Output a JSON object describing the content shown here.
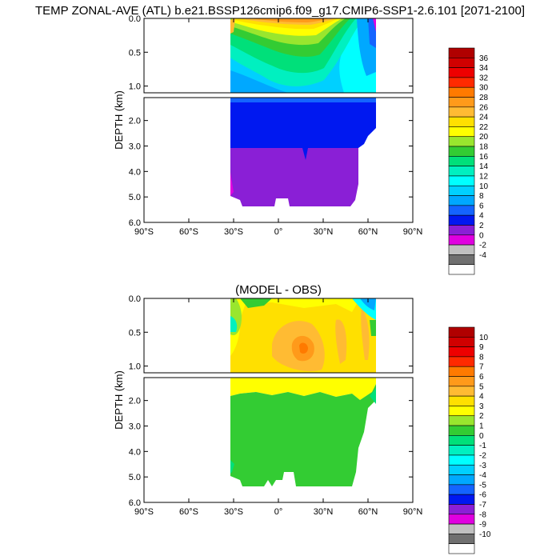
{
  "figure": {
    "title": "TEMP ZONAL-AVE (ATL) b.e21.BSSP126cmip6.f09_g17.CMIP6-SSP1-2.6.101 [2071-2100]"
  },
  "chart_data": [
    {
      "type": "heatmap",
      "panel": "model",
      "title": "",
      "xlabel": "",
      "ylabel": "DEPTH (km)",
      "x_ticks": [
        "90°S",
        "60°S",
        "30°S",
        "0°",
        "30°N",
        "60°N",
        "90°N"
      ],
      "x_tick_values": [
        -90,
        -60,
        -30,
        0,
        30,
        60,
        90
      ],
      "xlim": [
        -90,
        90
      ],
      "upper_segment": {
        "ylim": [
          0.0,
          1.1
        ],
        "ticks": [
          "0.0",
          "0.5",
          "1.0"
        ],
        "tick_values": [
          0.0,
          0.5,
          1.0
        ]
      },
      "lower_segment": {
        "ylim": [
          1.1,
          6.0
        ],
        "ticks": [
          "2.0",
          "3.0",
          "4.0",
          "5.0",
          "6.0"
        ],
        "tick_values": [
          2.0,
          3.0,
          4.0,
          5.0,
          6.0
        ]
      },
      "colorbar": {
        "levels": [
          "36",
          "34",
          "32",
          "30",
          "28",
          "26",
          "24",
          "22",
          "20",
          "18",
          "16",
          "14",
          "12",
          "10",
          "8",
          "6",
          "4",
          "2",
          "0",
          "-2",
          "-4"
        ],
        "colors": [
          "#b00000",
          "#d00000",
          "#ee0000",
          "#ff2a00",
          "#ff7a00",
          "#ff9a1a",
          "#ffbb33",
          "#ffe000",
          "#ffff00",
          "#99e62e",
          "#33cc33",
          "#00e07a",
          "#00f0c0",
          "#00ffff",
          "#00d0ff",
          "#00a8ff",
          "#1464ff",
          "#0018f0",
          "#8a1fd6",
          "#e000e0",
          "#c0c0c0",
          "#707070",
          "#ffffff"
        ]
      },
      "approx_zonal_profile": {
        "latitude": [
          -30,
          -10,
          0,
          10,
          20,
          30,
          40,
          50,
          60,
          65
        ],
        "surface_temp": [
          20,
          26,
          28,
          28,
          27,
          24,
          20,
          14,
          6,
          4
        ],
        "temp_at_0_5km": [
          9,
          11,
          12,
          13,
          14,
          14,
          13,
          10,
          6,
          3
        ],
        "temp_at_1_0km": [
          5,
          5,
          5,
          6,
          6,
          7,
          8,
          7,
          5,
          3
        ],
        "temp_at_3_0km": [
          3,
          3,
          3,
          3,
          3,
          3,
          3,
          3,
          3,
          2
        ],
        "temp_at_5_0km": [
          1,
          1,
          1,
          1,
          1,
          1,
          1,
          1,
          null,
          null
        ]
      }
    },
    {
      "type": "heatmap",
      "panel": "model_minus_obs",
      "title": "(MODEL - OBS)",
      "xlabel": "",
      "ylabel": "DEPTH (km)",
      "x_ticks": [
        "90°S",
        "60°S",
        "30°S",
        "0°",
        "30°N",
        "60°N",
        "90°N"
      ],
      "x_tick_values": [
        -90,
        -60,
        -30,
        0,
        30,
        60,
        90
      ],
      "xlim": [
        -90,
        90
      ],
      "upper_segment": {
        "ylim": [
          0.0,
          1.1
        ],
        "ticks": [
          "0.0",
          "0.5",
          "1.0"
        ],
        "tick_values": [
          0.0,
          0.5,
          1.0
        ]
      },
      "lower_segment": {
        "ylim": [
          1.1,
          6.0
        ],
        "ticks": [
          "2.0",
          "3.0",
          "4.0",
          "5.0",
          "6.0"
        ],
        "tick_values": [
          2.0,
          3.0,
          4.0,
          5.0,
          6.0
        ]
      },
      "colorbar": {
        "levels": [
          "10",
          "9",
          "8",
          "7",
          "6",
          "5",
          "4",
          "3",
          "2",
          "1",
          "0",
          "-1",
          "-2",
          "-3",
          "-4",
          "-5",
          "-6",
          "-7",
          "-8",
          "-9",
          "-10"
        ],
        "colors": [
          "#b00000",
          "#d00000",
          "#ee0000",
          "#ff2a00",
          "#ff7a00",
          "#ff9a1a",
          "#ffbb33",
          "#ffe000",
          "#ffff00",
          "#99e62e",
          "#33cc33",
          "#00e07a",
          "#00f0c0",
          "#00ffff",
          "#00d0ff",
          "#00a8ff",
          "#1464ff",
          "#0018f0",
          "#8a1fd6",
          "#e000e0",
          "#c0c0c0",
          "#707070",
          "#ffffff"
        ]
      },
      "approx_zonal_profile": {
        "latitude": [
          -30,
          -10,
          0,
          10,
          20,
          30,
          40,
          50,
          60,
          65
        ],
        "diff_at_0_1km": [
          1,
          2,
          2,
          2,
          2,
          2,
          1,
          1,
          -2,
          -3
        ],
        "diff_at_0_5km": [
          -1,
          2,
          3,
          4,
          4,
          3,
          3,
          5,
          2,
          0
        ],
        "diff_at_1_0km": [
          2,
          3,
          3,
          3,
          3,
          3,
          3,
          2,
          2,
          1
        ],
        "diff_at_2_0km": [
          1,
          2,
          2,
          2,
          2,
          2,
          2,
          1,
          1,
          0
        ],
        "diff_at_4_0km": [
          1,
          1,
          1,
          1,
          1,
          1,
          1,
          1,
          null,
          null
        ]
      }
    }
  ]
}
